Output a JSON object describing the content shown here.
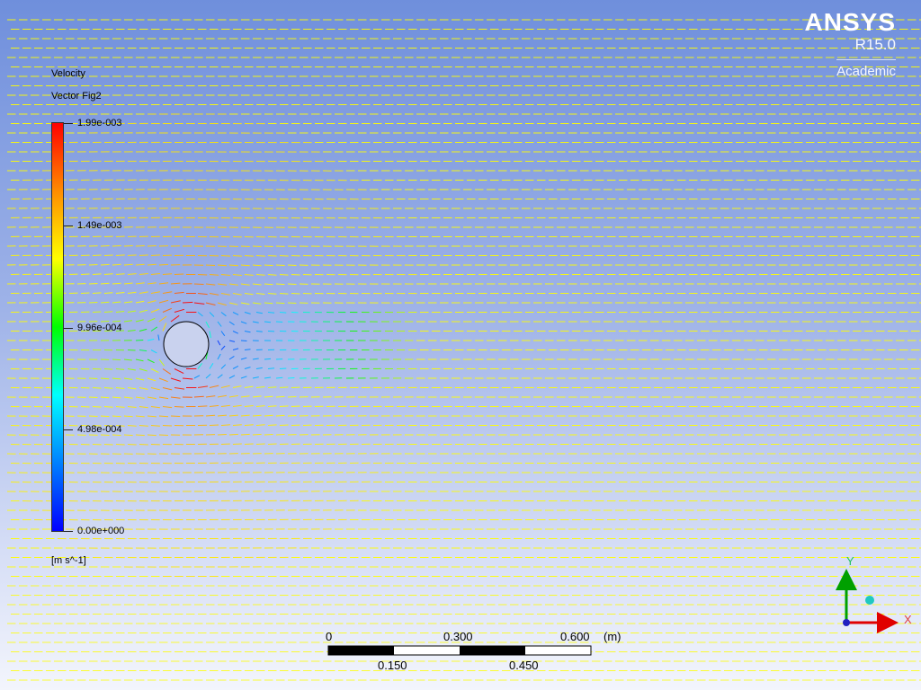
{
  "legend": {
    "title": "Velocity",
    "subtitle": "Vector Fig2",
    "units": "[m s^-1]",
    "ticks": [
      "1.99e-003",
      "1.49e-003",
      "9.96e-004",
      "4.98e-004",
      "0.00e+000"
    ],
    "colors": [
      "#ff0000",
      "#ff8c00",
      "#ffff00",
      "#00ff00",
      "#00ffff",
      "#0080ff",
      "#0000ff"
    ]
  },
  "brand": {
    "name": "ANSYS",
    "release": "R15.0",
    "edition": "Academic"
  },
  "scale": {
    "top_labels": [
      "0",
      "0.300",
      "0.600"
    ],
    "bottom_labels": [
      "0.150",
      "0.450"
    ],
    "unit": "(m)"
  },
  "axes": {
    "y_label": "Y",
    "x_label": "X"
  },
  "colors": {
    "background_top": "#6f8fdc",
    "background_bottom": "#f3f5fc",
    "vector_default": "#ffff00",
    "cylinder_fill": "#c9d2ee"
  }
}
